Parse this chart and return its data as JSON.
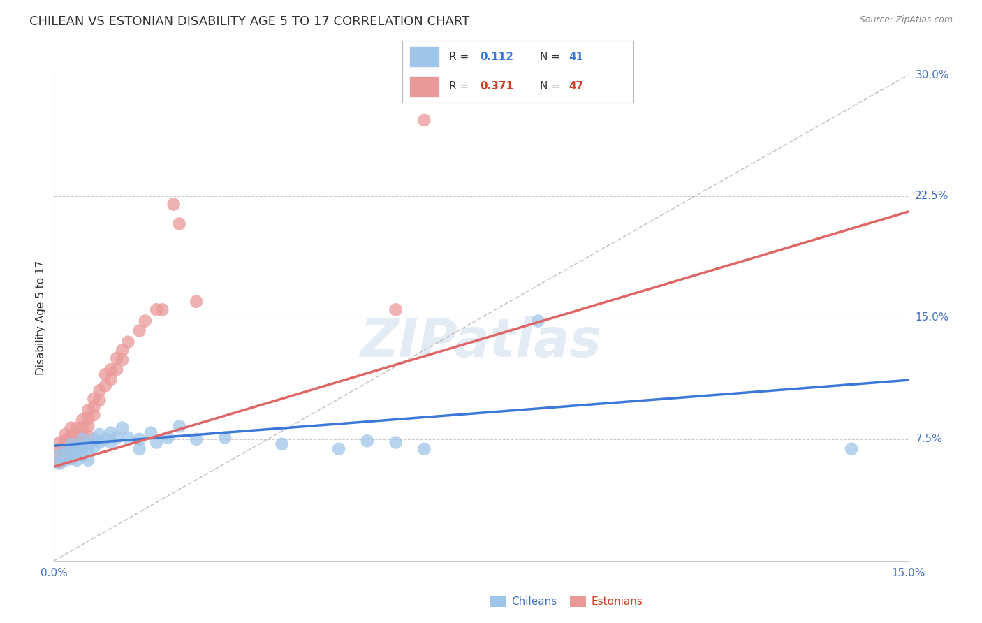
{
  "title": "CHILEAN VS ESTONIAN DISABILITY AGE 5 TO 17 CORRELATION CHART",
  "source": "Source: ZipAtlas.com",
  "ylabel_label": "Disability Age 5 to 17",
  "xlim": [
    0.0,
    0.15
  ],
  "ylim": [
    0.0,
    0.3
  ],
  "xticks": [
    0.0,
    0.05,
    0.1,
    0.15
  ],
  "xtick_labels": [
    "0.0%",
    "",
    "",
    "15.0%"
  ],
  "yticks_right": [
    0.075,
    0.15,
    0.225,
    0.3
  ],
  "ytick_labels_right": [
    "7.5%",
    "15.0%",
    "22.5%",
    "30.0%"
  ],
  "legend_R_blue_val": "0.112",
  "legend_N_blue_val": "41",
  "legend_R_pink_val": "0.371",
  "legend_N_pink_val": "47",
  "blue_scatter_color": "#9fc5e8",
  "pink_scatter_color": "#ea9999",
  "blue_line_color": "#3c78d8",
  "pink_line_color": "#e06666",
  "diag_line_color": "#c9b8b8",
  "R_N_blue_color": "#3c78d8",
  "R_N_pink_color": "#cc4125",
  "grid_color": "#cccccc",
  "background_color": "#ffffff",
  "watermark_text": "ZIPatlas",
  "title_fontsize": 13,
  "source_fontsize": 9,
  "axis_label_fontsize": 11,
  "tick_fontsize": 11,
  "legend_fontsize": 11,
  "blue_intercept": 0.071,
  "blue_slope": 0.27,
  "pink_intercept": 0.058,
  "pink_slope": 1.05,
  "chileans_x": [
    0.001,
    0.001,
    0.002,
    0.002,
    0.003,
    0.003,
    0.003,
    0.004,
    0.004,
    0.004,
    0.005,
    0.005,
    0.005,
    0.006,
    0.006,
    0.006,
    0.007,
    0.007,
    0.008,
    0.008,
    0.009,
    0.01,
    0.01,
    0.011,
    0.012,
    0.013,
    0.015,
    0.015,
    0.017,
    0.018,
    0.02,
    0.022,
    0.025,
    0.03,
    0.04,
    0.05,
    0.055,
    0.06,
    0.065,
    0.085,
    0.14
  ],
  "chileans_y": [
    0.065,
    0.06,
    0.068,
    0.062,
    0.072,
    0.068,
    0.063,
    0.07,
    0.066,
    0.062,
    0.075,
    0.07,
    0.065,
    0.072,
    0.068,
    0.062,
    0.075,
    0.07,
    0.078,
    0.073,
    0.075,
    0.079,
    0.073,
    0.076,
    0.082,
    0.076,
    0.075,
    0.069,
    0.079,
    0.073,
    0.076,
    0.083,
    0.075,
    0.076,
    0.072,
    0.069,
    0.074,
    0.073,
    0.069,
    0.148,
    0.069
  ],
  "estonians_x": [
    0.001,
    0.001,
    0.001,
    0.001,
    0.002,
    0.002,
    0.002,
    0.002,
    0.003,
    0.003,
    0.003,
    0.003,
    0.003,
    0.004,
    0.004,
    0.004,
    0.005,
    0.005,
    0.005,
    0.005,
    0.006,
    0.006,
    0.006,
    0.006,
    0.007,
    0.007,
    0.007,
    0.008,
    0.008,
    0.009,
    0.009,
    0.01,
    0.01,
    0.011,
    0.011,
    0.012,
    0.012,
    0.013,
    0.015,
    0.016,
    0.018,
    0.019,
    0.021,
    0.022,
    0.025,
    0.06,
    0.065
  ],
  "estonians_y": [
    0.073,
    0.069,
    0.065,
    0.061,
    0.078,
    0.074,
    0.07,
    0.065,
    0.082,
    0.077,
    0.073,
    0.069,
    0.063,
    0.082,
    0.077,
    0.072,
    0.087,
    0.082,
    0.077,
    0.072,
    0.093,
    0.088,
    0.083,
    0.077,
    0.1,
    0.095,
    0.09,
    0.105,
    0.099,
    0.115,
    0.108,
    0.118,
    0.112,
    0.125,
    0.118,
    0.13,
    0.124,
    0.135,
    0.142,
    0.148,
    0.155,
    0.155,
    0.22,
    0.208,
    0.16,
    0.155,
    0.272
  ]
}
